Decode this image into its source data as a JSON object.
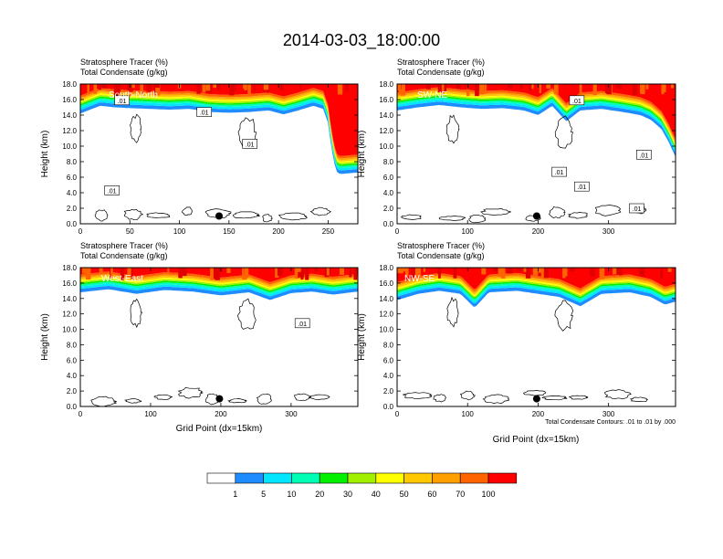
{
  "figure": {
    "title": "2014-03-03_18:00:00",
    "contour_note": "Total Condensate Contours: .01 to .01 by .000"
  },
  "chart_data": [
    {
      "type": "heatmap",
      "panel": "South-North",
      "title_lines": [
        "Stratosphere Tracer   (%)",
        "Total Condensate   (g/kg)"
      ],
      "ylabel": "Height (km)",
      "xlabel": "",
      "xlim": [
        0,
        280
      ],
      "ylim": [
        0,
        18
      ],
      "xticks": [
        0,
        50,
        100,
        150,
        200,
        250
      ],
      "yticks": [
        "0.0",
        "2.0",
        "4.0",
        "6.0",
        "8.0",
        "10.0",
        "12.0",
        "14.0",
        "16.0",
        "18.0"
      ],
      "tropopause": [
        [
          0,
          14.2
        ],
        [
          20,
          15.2
        ],
        [
          35,
          15.0
        ],
        [
          50,
          14.9
        ],
        [
          70,
          14.8
        ],
        [
          90,
          14.7
        ],
        [
          110,
          14.8
        ],
        [
          130,
          14.4
        ],
        [
          150,
          14.3
        ],
        [
          170,
          14.4
        ],
        [
          190,
          14.6
        ],
        [
          205,
          14.1
        ],
        [
          220,
          14.6
        ],
        [
          235,
          15.2
        ],
        [
          245,
          14.8
        ],
        [
          250,
          13.0
        ],
        [
          253,
          10.0
        ],
        [
          256,
          8.0
        ],
        [
          258,
          6.8
        ],
        [
          262,
          6.4
        ],
        [
          270,
          6.5
        ],
        [
          280,
          6.6
        ]
      ],
      "contour_labels": [
        {
          "text": ".01",
          "x": 42,
          "y": 15.9
        },
        {
          "text": ".01",
          "x": 125,
          "y": 14.4
        },
        {
          "text": ".01",
          "x": 171,
          "y": 10.3
        },
        {
          "text": ".01",
          "x": 32,
          "y": 4.3
        }
      ],
      "marker": {
        "x": 140,
        "y": 1.0
      }
    },
    {
      "type": "heatmap",
      "panel": "SW-NE",
      "title_lines": [
        "Stratosphere Tracer   (%)",
        "Total Condensate   (g/kg)"
      ],
      "ylabel": "Height (km)",
      "xlabel": "",
      "xlim": [
        0,
        395
      ],
      "ylim": [
        0,
        18
      ],
      "xticks": [
        0,
        100,
        200,
        300
      ],
      "yticks": [
        "0.0",
        "2.0",
        "4.0",
        "6.0",
        "8.0",
        "10.0",
        "12.0",
        "14.0",
        "16.0",
        "18.0"
      ],
      "tropopause": [
        [
          0,
          14.6
        ],
        [
          30,
          15.0
        ],
        [
          60,
          15.3
        ],
        [
          90,
          15.0
        ],
        [
          120,
          14.8
        ],
        [
          150,
          14.9
        ],
        [
          180,
          14.6
        ],
        [
          200,
          14.0
        ],
        [
          220,
          15.2
        ],
        [
          240,
          13.2
        ],
        [
          260,
          14.6
        ],
        [
          290,
          14.8
        ],
        [
          320,
          14.4
        ],
        [
          345,
          14.0
        ],
        [
          360,
          13.4
        ],
        [
          375,
          12.2
        ],
        [
          385,
          10.6
        ],
        [
          395,
          8.6
        ]
      ],
      "contour_labels": [
        {
          "text": ".01",
          "x": 255,
          "y": 15.9
        },
        {
          "text": ".01",
          "x": 230,
          "y": 6.7
        },
        {
          "text": ".01",
          "x": 262,
          "y": 4.8
        },
        {
          "text": ".01",
          "x": 350,
          "y": 8.9
        },
        {
          "text": ".01",
          "x": 340,
          "y": 2.0
        }
      ],
      "marker": {
        "x": 198,
        "y": 1.0
      }
    },
    {
      "type": "heatmap",
      "panel": "West-East",
      "title_lines": [
        "Stratosphere Tracer   (%)",
        "Total Condensate   (g/kg)"
      ],
      "ylabel": "Height (km)",
      "xlabel": "Grid Point (dx=15km)",
      "xlim": [
        0,
        395
      ],
      "ylim": [
        0,
        18
      ],
      "xticks": [
        0,
        100,
        200,
        300
      ],
      "yticks": [
        "0.0",
        "2.0",
        "4.0",
        "6.0",
        "8.0",
        "10.0",
        "12.0",
        "14.0",
        "16.0",
        "18.0"
      ],
      "tropopause": [
        [
          0,
          14.8
        ],
        [
          40,
          15.2
        ],
        [
          80,
          14.6
        ],
        [
          120,
          15.1
        ],
        [
          160,
          14.9
        ],
        [
          200,
          14.4
        ],
        [
          240,
          14.8
        ],
        [
          270,
          13.8
        ],
        [
          300,
          14.7
        ],
        [
          330,
          14.9
        ],
        [
          360,
          14.5
        ],
        [
          395,
          14.9
        ]
      ],
      "contour_labels": [
        {
          "text": ".01",
          "x": 316,
          "y": 10.8
        }
      ],
      "marker": {
        "x": 198,
        "y": 1.0
      }
    },
    {
      "type": "heatmap",
      "panel": "NW-SE",
      "title_lines": [
        "Stratosphere Tracer   (%)",
        "Total Condensate   (g/kg)"
      ],
      "ylabel": "Height (km)",
      "xlabel": "Grid Point (dx=15km)",
      "xlim": [
        0,
        395
      ],
      "ylim": [
        0,
        18
      ],
      "xticks": [
        0,
        100,
        200,
        300
      ],
      "yticks": [
        "0.0",
        "2.0",
        "4.0",
        "6.0",
        "8.0",
        "10.0",
        "12.0",
        "14.0",
        "16.0",
        "18.0"
      ],
      "tropopause": [
        [
          0,
          13.8
        ],
        [
          30,
          14.6
        ],
        [
          60,
          15.0
        ],
        [
          90,
          14.6
        ],
        [
          110,
          12.8
        ],
        [
          130,
          14.8
        ],
        [
          170,
          15.0
        ],
        [
          200,
          14.6
        ],
        [
          230,
          14.2
        ],
        [
          260,
          13.0
        ],
        [
          290,
          14.6
        ],
        [
          330,
          14.8
        ],
        [
          360,
          14.2
        ],
        [
          380,
          13.2
        ],
        [
          395,
          13.6
        ]
      ],
      "contour_labels": [],
      "marker": {
        "x": 198,
        "y": 1.0
      }
    }
  ],
  "colorbar": {
    "labels": [
      "1",
      "5",
      "10",
      "20",
      "30",
      "40",
      "50",
      "60",
      "70",
      "100"
    ],
    "colors": [
      "#ffffff",
      "#1e8cff",
      "#00e6ff",
      "#00ffb4",
      "#00f000",
      "#a0f000",
      "#ffff00",
      "#ffc800",
      "#ffa000",
      "#ff6400",
      "#ff0000"
    ]
  }
}
